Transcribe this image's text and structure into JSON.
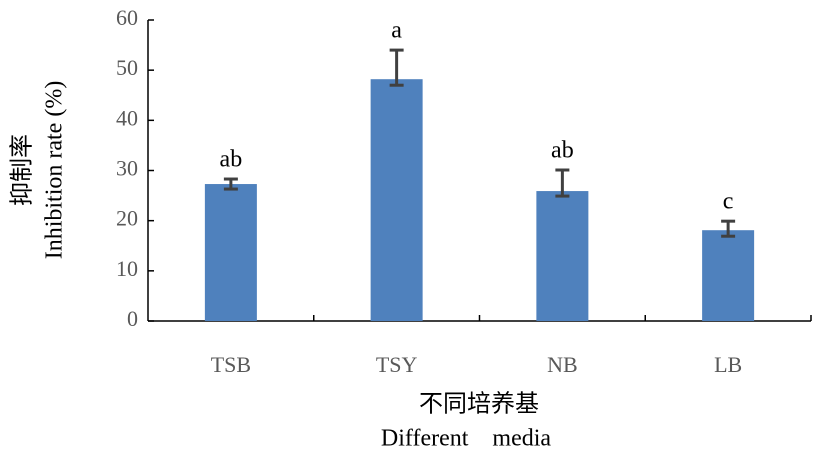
{
  "chart_data": {
    "type": "bar",
    "y_label_cn": "抑制率",
    "y_label": "Inhibition rate (%)",
    "x_label_cn": "不同培养基",
    "x_label": "Different　media",
    "categories": [
      "TSB",
      "TSY",
      "NB",
      "LB"
    ],
    "values": [
      27.3,
      48.2,
      25.9,
      18.1
    ],
    "error_plus": [
      1,
      5.8,
      4.2,
      1.8
    ],
    "error_minus": [
      1,
      1.2,
      1,
      1.2
    ],
    "value_labels": [
      "ab",
      "a",
      "ab",
      "c"
    ],
    "color": "#4f81bd",
    "ylim": [
      0,
      60
    ],
    "yticks": [
      0,
      10,
      20,
      30,
      40,
      50,
      60
    ],
    "grid": false
  }
}
